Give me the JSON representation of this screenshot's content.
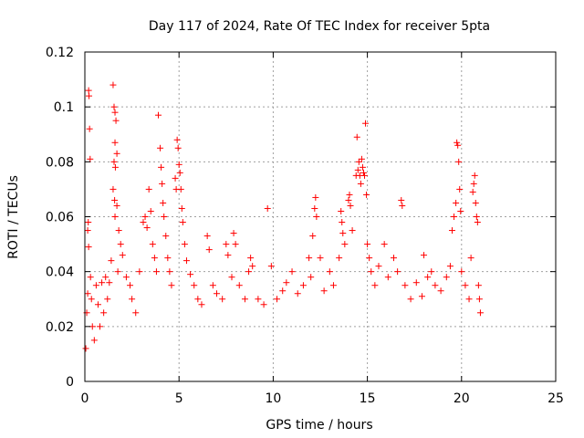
{
  "chart_data": {
    "type": "scatter",
    "title": "Day 117 of 2024, Rate Of TEC Index for receiver 5pta",
    "xlabel": "GPS time / hours",
    "ylabel": "ROTI / TECUs",
    "xlim": [
      0,
      25
    ],
    "ylim": [
      0,
      0.12
    ],
    "xticks": [
      0,
      5,
      10,
      15,
      20,
      25
    ],
    "xtick_labels": [
      "0",
      "5",
      "10",
      "15",
      "20",
      "25"
    ],
    "yticks": [
      0,
      0.02,
      0.04,
      0.06,
      0.08,
      0.1,
      0.12
    ],
    "ytick_labels": [
      "0",
      "0.02",
      "0.04",
      "0.06",
      "0.08",
      "0.1",
      "0.12"
    ],
    "grid": true,
    "marker": "+",
    "color": "#ff0000",
    "series": [
      {
        "points": [
          [
            0.05,
            0.012
          ],
          [
            0.1,
            0.025
          ],
          [
            0.15,
            0.032
          ],
          [
            0.2,
            0.106
          ],
          [
            0.22,
            0.104
          ],
          [
            0.25,
            0.092
          ],
          [
            0.28,
            0.081
          ],
          [
            0.18,
            0.058
          ],
          [
            0.15,
            0.055
          ],
          [
            0.2,
            0.049
          ],
          [
            0.3,
            0.038
          ],
          [
            0.35,
            0.03
          ],
          [
            0.4,
            0.02
          ],
          [
            0.5,
            0.015
          ],
          [
            0.6,
            0.035
          ],
          [
            0.7,
            0.028
          ],
          [
            0.8,
            0.02
          ],
          [
            0.9,
            0.036
          ],
          [
            1.0,
            0.025
          ],
          [
            1.1,
            0.038
          ],
          [
            1.2,
            0.03
          ],
          [
            1.3,
            0.036
          ],
          [
            1.4,
            0.044
          ],
          [
            1.5,
            0.108
          ],
          [
            1.55,
            0.1
          ],
          [
            1.6,
            0.098
          ],
          [
            1.65,
            0.095
          ],
          [
            1.6,
            0.087
          ],
          [
            1.7,
            0.083
          ],
          [
            1.55,
            0.08
          ],
          [
            1.62,
            0.078
          ],
          [
            1.5,
            0.07
          ],
          [
            1.58,
            0.066
          ],
          [
            1.7,
            0.064
          ],
          [
            1.6,
            0.06
          ],
          [
            1.8,
            0.055
          ],
          [
            1.9,
            0.05
          ],
          [
            2.0,
            0.046
          ],
          [
            1.75,
            0.04
          ],
          [
            2.2,
            0.038
          ],
          [
            2.4,
            0.035
          ],
          [
            2.5,
            0.03
          ],
          [
            2.7,
            0.025
          ],
          [
            2.9,
            0.04
          ],
          [
            3.1,
            0.058
          ],
          [
            3.2,
            0.06
          ],
          [
            3.3,
            0.056
          ],
          [
            3.4,
            0.07
          ],
          [
            3.5,
            0.062
          ],
          [
            3.6,
            0.05
          ],
          [
            3.7,
            0.045
          ],
          [
            3.8,
            0.04
          ],
          [
            3.9,
            0.097
          ],
          [
            4.0,
            0.085
          ],
          [
            4.05,
            0.078
          ],
          [
            4.1,
            0.072
          ],
          [
            4.15,
            0.065
          ],
          [
            4.2,
            0.06
          ],
          [
            4.3,
            0.053
          ],
          [
            4.4,
            0.045
          ],
          [
            4.5,
            0.04
          ],
          [
            4.6,
            0.035
          ],
          [
            4.8,
            0.074
          ],
          [
            4.85,
            0.07
          ],
          [
            4.9,
            0.088
          ],
          [
            4.95,
            0.085
          ],
          [
            5.0,
            0.079
          ],
          [
            5.05,
            0.076
          ],
          [
            5.1,
            0.07
          ],
          [
            5.15,
            0.063
          ],
          [
            5.2,
            0.058
          ],
          [
            5.3,
            0.05
          ],
          [
            5.4,
            0.044
          ],
          [
            5.6,
            0.039
          ],
          [
            5.8,
            0.035
          ],
          [
            6.0,
            0.03
          ],
          [
            6.2,
            0.028
          ],
          [
            6.5,
            0.053
          ],
          [
            6.6,
            0.048
          ],
          [
            6.8,
            0.035
          ],
          [
            7.0,
            0.032
          ],
          [
            7.3,
            0.03
          ],
          [
            7.5,
            0.05
          ],
          [
            7.6,
            0.046
          ],
          [
            7.8,
            0.038
          ],
          [
            7.9,
            0.054
          ],
          [
            8.0,
            0.05
          ],
          [
            8.2,
            0.035
          ],
          [
            8.5,
            0.03
          ],
          [
            8.7,
            0.04
          ],
          [
            8.8,
            0.045
          ],
          [
            8.9,
            0.042
          ],
          [
            9.2,
            0.03
          ],
          [
            9.5,
            0.028
          ],
          [
            9.7,
            0.063
          ],
          [
            9.9,
            0.042
          ],
          [
            10.2,
            0.03
          ],
          [
            10.5,
            0.033
          ],
          [
            10.7,
            0.036
          ],
          [
            11.0,
            0.04
          ],
          [
            11.3,
            0.032
          ],
          [
            11.6,
            0.035
          ],
          [
            11.9,
            0.045
          ],
          [
            12.0,
            0.038
          ],
          [
            12.1,
            0.053
          ],
          [
            12.2,
            0.063
          ],
          [
            12.25,
            0.067
          ],
          [
            12.3,
            0.06
          ],
          [
            12.5,
            0.045
          ],
          [
            12.7,
            0.033
          ],
          [
            13.0,
            0.04
          ],
          [
            13.2,
            0.035
          ],
          [
            13.5,
            0.045
          ],
          [
            13.6,
            0.062
          ],
          [
            13.65,
            0.058
          ],
          [
            13.7,
            0.054
          ],
          [
            13.8,
            0.05
          ],
          [
            14.0,
            0.066
          ],
          [
            14.05,
            0.068
          ],
          [
            14.1,
            0.064
          ],
          [
            14.2,
            0.055
          ],
          [
            14.4,
            0.075
          ],
          [
            14.45,
            0.089
          ],
          [
            14.5,
            0.077
          ],
          [
            14.55,
            0.08
          ],
          [
            14.6,
            0.075
          ],
          [
            14.65,
            0.072
          ],
          [
            14.7,
            0.081
          ],
          [
            14.75,
            0.078
          ],
          [
            14.8,
            0.076
          ],
          [
            14.85,
            0.075
          ],
          [
            14.9,
            0.094
          ],
          [
            14.95,
            0.068
          ],
          [
            15.0,
            0.05
          ],
          [
            15.1,
            0.045
          ],
          [
            15.2,
            0.04
          ],
          [
            15.4,
            0.035
          ],
          [
            15.6,
            0.042
          ],
          [
            15.9,
            0.05
          ],
          [
            16.1,
            0.038
          ],
          [
            16.4,
            0.045
          ],
          [
            16.6,
            0.04
          ],
          [
            16.8,
            0.066
          ],
          [
            16.85,
            0.064
          ],
          [
            17.0,
            0.035
          ],
          [
            17.3,
            0.03
          ],
          [
            17.6,
            0.036
          ],
          [
            17.9,
            0.031
          ],
          [
            18.0,
            0.046
          ],
          [
            18.2,
            0.038
          ],
          [
            18.4,
            0.04
          ],
          [
            18.6,
            0.035
          ],
          [
            18.9,
            0.033
          ],
          [
            19.2,
            0.038
          ],
          [
            19.4,
            0.042
          ],
          [
            19.5,
            0.055
          ],
          [
            19.6,
            0.06
          ],
          [
            19.7,
            0.065
          ],
          [
            19.75,
            0.087
          ],
          [
            19.8,
            0.086
          ],
          [
            19.85,
            0.08
          ],
          [
            19.9,
            0.07
          ],
          [
            19.95,
            0.062
          ],
          [
            20.0,
            0.04
          ],
          [
            20.2,
            0.035
          ],
          [
            20.4,
            0.03
          ],
          [
            20.5,
            0.045
          ],
          [
            20.6,
            0.069
          ],
          [
            20.65,
            0.072
          ],
          [
            20.7,
            0.075
          ],
          [
            20.75,
            0.065
          ],
          [
            20.8,
            0.06
          ],
          [
            20.85,
            0.058
          ],
          [
            20.9,
            0.035
          ],
          [
            20.95,
            0.03
          ],
          [
            21.0,
            0.025
          ]
        ]
      }
    ]
  }
}
